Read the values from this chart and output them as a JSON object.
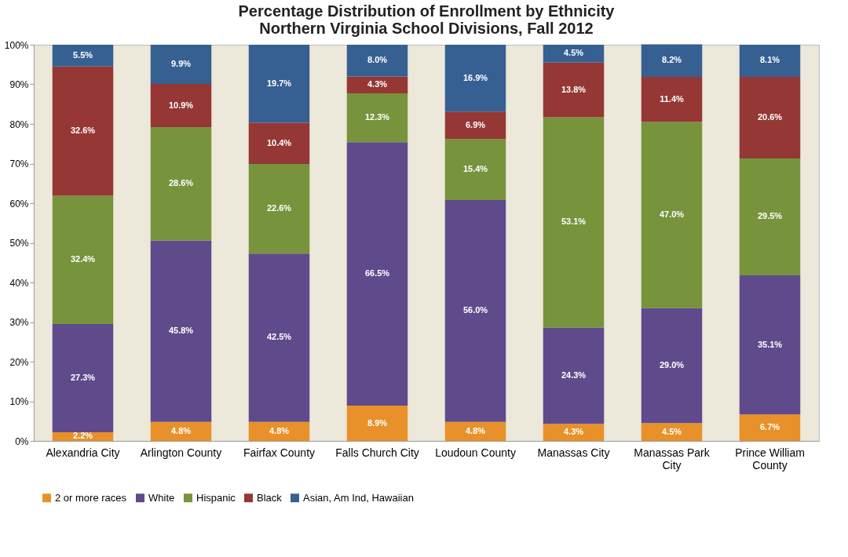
{
  "chart_data": {
    "type": "bar",
    "stacked": true,
    "title": [
      "Percentage Distribution of Enrollment by Ethnicity",
      "Northern Virginia School Divisions, Fall 2012"
    ],
    "categories": [
      "Alexandria City",
      "Arlington County",
      "Fairfax County",
      "Falls Church City",
      "Loudoun County",
      "Manassas City",
      "Manassas Park City",
      "Prince William County"
    ],
    "series": [
      {
        "name": "2 or more races",
        "color": "#e8912a",
        "values": [
          2.2,
          4.8,
          4.8,
          8.9,
          4.8,
          4.3,
          4.5,
          6.7
        ],
        "value_labels": [
          "2.2%",
          "4.8%",
          "4.8%",
          "8.9%",
          "4.8%",
          "4.3%",
          "4.5%",
          "6.7%"
        ]
      },
      {
        "name": "White",
        "color": "#5f4a8b",
        "values": [
          27.3,
          45.8,
          42.5,
          66.5,
          56.0,
          24.3,
          29.0,
          35.1
        ],
        "value_labels": [
          "27.3%",
          "45.8%",
          "42.5%",
          "66.5%",
          "56.0%",
          "24.3%",
          "29.0%",
          "35.1%"
        ]
      },
      {
        "name": "Hispanic",
        "color": "#77933c",
        "values": [
          32.4,
          28.6,
          22.6,
          12.3,
          15.4,
          53.1,
          47.0,
          29.5
        ],
        "value_labels": [
          "32.4%",
          "28.6%",
          "22.6%",
          "12.3%",
          "15.4%",
          "53.1%",
          "47.0%",
          "29.5%"
        ]
      },
      {
        "name": "Black",
        "color": "#953735",
        "values": [
          32.6,
          10.9,
          10.4,
          4.3,
          6.9,
          13.8,
          11.4,
          20.6
        ],
        "value_labels": [
          "32.6%",
          "10.9%",
          "10.4%",
          "4.3%",
          "6.9%",
          "13.8%",
          "11.4%",
          "20.6%"
        ]
      },
      {
        "name": "Asian, Am Ind, Hawaiian",
        "color": "#376092",
        "values": [
          5.5,
          9.9,
          19.7,
          8.0,
          16.9,
          4.5,
          8.2,
          8.1
        ],
        "value_labels": [
          "5.5%",
          "9.9%",
          "19.7%",
          "8.0%",
          "16.9%",
          "4.5%",
          "8.2%",
          "8.1%"
        ]
      }
    ],
    "ylim": [
      0,
      100
    ],
    "yticks": [
      {
        "value": 0,
        "label": "0%"
      },
      {
        "value": 10,
        "label": "10%"
      },
      {
        "value": 20,
        "label": "20%"
      },
      {
        "value": 30,
        "label": "30%"
      },
      {
        "value": 40,
        "label": "40%"
      },
      {
        "value": 50,
        "label": "50%"
      },
      {
        "value": 60,
        "label": "60%"
      },
      {
        "value": 70,
        "label": "70%"
      },
      {
        "value": 80,
        "label": "80%"
      },
      {
        "value": 90,
        "label": "90%"
      },
      {
        "value": 100,
        "label": "100%"
      }
    ],
    "grid": false,
    "legend": "bottom"
  }
}
